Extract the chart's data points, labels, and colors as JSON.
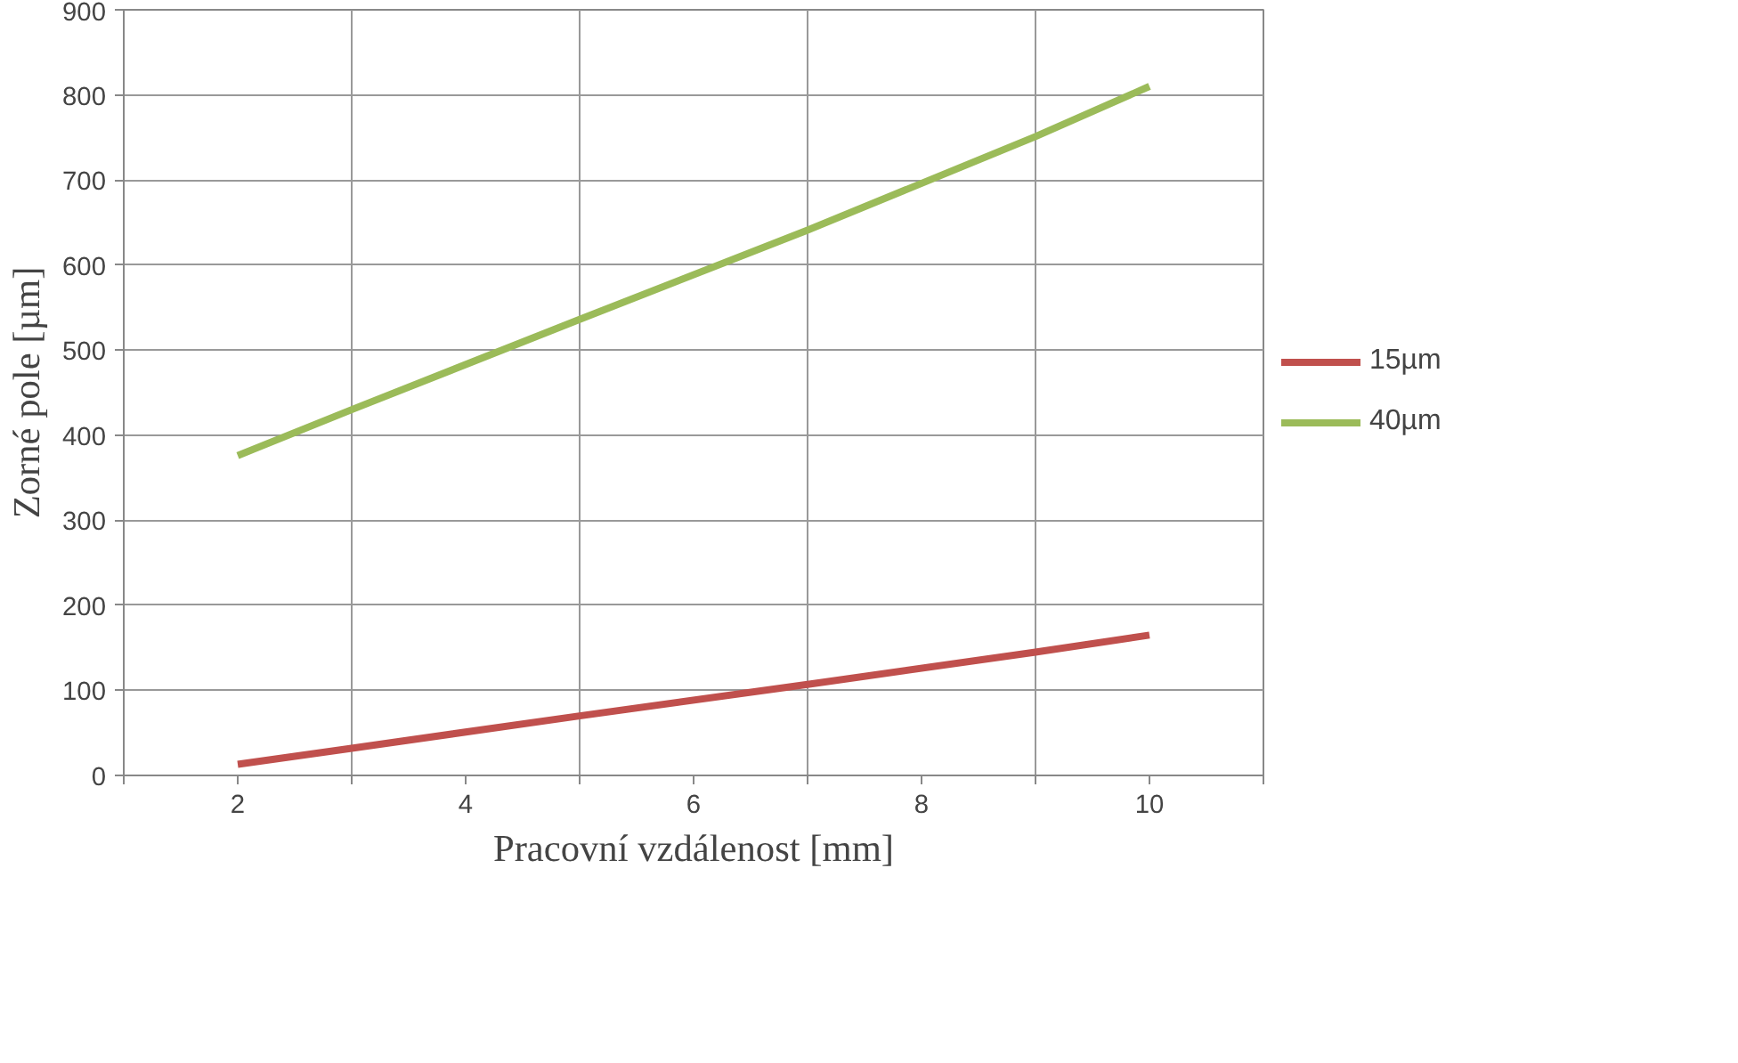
{
  "chart_data": {
    "type": "line",
    "xlabel": "Pracovní vzdálenost [mm]",
    "ylabel": "Zorné pole [µm]",
    "x": [
      2,
      3,
      5,
      7,
      9,
      10
    ],
    "series": [
      {
        "name": "15µm",
        "color": "#c0504d",
        "values": [
          13,
          32,
          70,
          107,
          145,
          165
        ]
      },
      {
        "name": "40µm",
        "color": "#9bbb59",
        "values": [
          376,
          430,
          536,
          641,
          751,
          810
        ]
      }
    ],
    "xlim": [
      1,
      11
    ],
    "xticks": [
      {
        "value": 1,
        "label": null
      },
      2,
      {
        "value": 3,
        "label": null
      },
      4,
      {
        "value": 5,
        "label": null
      },
      6,
      {
        "value": 7,
        "label": null
      },
      8,
      {
        "value": 9,
        "label": null
      },
      10,
      {
        "value": 11,
        "label": null
      }
    ],
    "ylim": [
      0,
      900
    ],
    "yticks": [
      0,
      100,
      200,
      300,
      400,
      500,
      600,
      700,
      800,
      900
    ],
    "grid": true,
    "legend": "right",
    "line_style": "solid",
    "marker": "none"
  }
}
